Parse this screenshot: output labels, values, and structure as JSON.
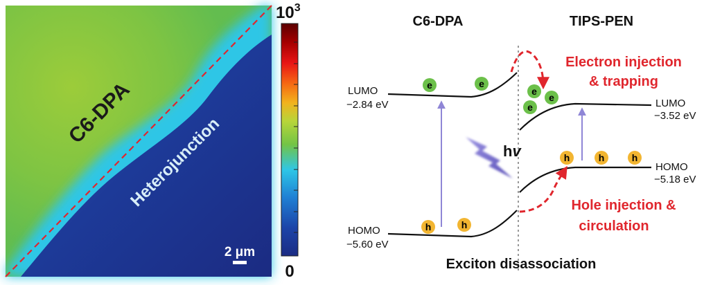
{
  "map": {
    "region_label": "C6-DPA",
    "interface_label": "Heterojunction",
    "scale_bar_label": "2 μm",
    "colorbar": {
      "max_base": "10",
      "max_exp": "3",
      "min_label": "0",
      "colors": [
        "#5b0000",
        "#a40000",
        "#e81515",
        "#f56a13",
        "#f2b21d",
        "#b8d53a",
        "#73c445",
        "#2ec6e6",
        "#1f7fd4",
        "#1c44a8",
        "#1b2c84"
      ]
    },
    "colors": {
      "green": "#73c445",
      "navy": "#1c2f86",
      "cyan": "#2ec6e6",
      "dash": "#e0262d"
    }
  },
  "diagram": {
    "left_title": "C6-DPA",
    "right_title": "TIPS-PEN",
    "lumo_left_label": "LUMO",
    "lumo_left_value": "−2.84 eV",
    "homo_left_label": "HOMO",
    "homo_left_value": "−5.60 eV",
    "lumo_right_label": "LUMO",
    "lumo_right_value": "−3.52 eV",
    "homo_right_label": "HOMO",
    "homo_right_value": "−5.18 eV",
    "electron_note_line1": "Electron injection",
    "electron_note_line2": "& trapping",
    "hole_note_line1": "Hole injection &",
    "hole_note_line2": "circulation",
    "photon_label_h": "h",
    "photon_label_nu": "v",
    "bottom_caption": "Exciton disassociation",
    "electron_symbol": "e",
    "hole_symbol": "h",
    "colors": {
      "red_note": "#e0262d",
      "electron": "#6cc04a",
      "hole": "#f2b531",
      "arrow": "#8f86d6",
      "bolt": "#7469cc"
    }
  }
}
